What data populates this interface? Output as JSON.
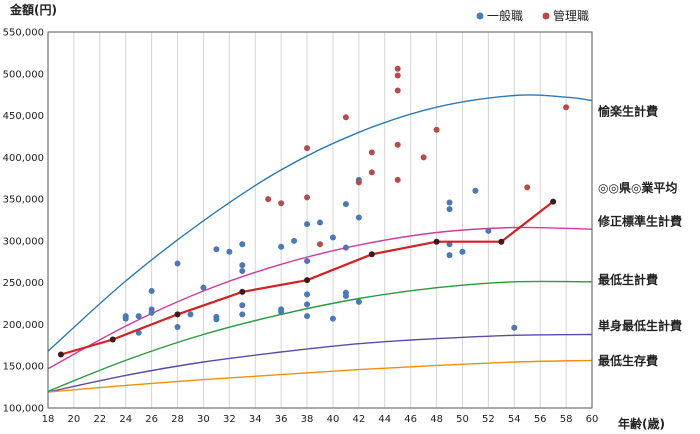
{
  "chart_data": {
    "type": "scatter",
    "ylabel": "金額(円)",
    "xlabel": "年齢(歳)",
    "xlim": [
      18,
      60
    ],
    "ylim": [
      100000,
      550000
    ],
    "x_ticks": [
      18,
      20,
      22,
      24,
      26,
      28,
      30,
      32,
      34,
      36,
      38,
      40,
      42,
      44,
      46,
      48,
      50,
      52,
      54,
      56,
      58,
      60
    ],
    "y_ticks": [
      100000,
      150000,
      200000,
      250000,
      300000,
      350000,
      400000,
      450000,
      500000,
      550000
    ],
    "y_tick_labels": [
      "100,000",
      "150,000",
      "200,000",
      "250,000",
      "300,000",
      "350,000",
      "400,000",
      "450,000",
      "500,000",
      "550,000"
    ],
    "grid": "vertical",
    "legend_position": "top-right",
    "legend": [
      {
        "name": "一般職",
        "color": "#4a78b8"
      },
      {
        "name": "管理職",
        "color": "#b84a4a"
      }
    ],
    "scatter_series": [
      {
        "name": "一般職",
        "color": "#4a78b8",
        "points": [
          [
            24,
            210000
          ],
          [
            24,
            207000
          ],
          [
            25,
            210000
          ],
          [
            25,
            190000
          ],
          [
            26,
            240000
          ],
          [
            26,
            218000
          ],
          [
            26,
            214000
          ],
          [
            28,
            273000
          ],
          [
            28,
            197000
          ],
          [
            29,
            212000
          ],
          [
            30,
            244000
          ],
          [
            31,
            290000
          ],
          [
            31,
            209000
          ],
          [
            31,
            206000
          ],
          [
            32,
            287000
          ],
          [
            33,
            296000
          ],
          [
            33,
            271000
          ],
          [
            33,
            264000
          ],
          [
            33,
            223000
          ],
          [
            33,
            212000
          ],
          [
            36,
            293000
          ],
          [
            36,
            218000
          ],
          [
            36,
            215000
          ],
          [
            37,
            300000
          ],
          [
            38,
            320000
          ],
          [
            38,
            276000
          ],
          [
            38,
            236000
          ],
          [
            38,
            224000
          ],
          [
            38,
            210000
          ],
          [
            39,
            322000
          ],
          [
            40,
            304000
          ],
          [
            40,
            207000
          ],
          [
            41,
            344000
          ],
          [
            41,
            292000
          ],
          [
            41,
            238000
          ],
          [
            41,
            234000
          ],
          [
            42,
            373000
          ],
          [
            42,
            328000
          ],
          [
            42,
            227000
          ],
          [
            49,
            346000
          ],
          [
            49,
            338000
          ],
          [
            49,
            296000
          ],
          [
            49,
            283000
          ],
          [
            50,
            287000
          ],
          [
            51,
            360000
          ],
          [
            52,
            312000
          ],
          [
            54,
            196000
          ]
        ]
      },
      {
        "name": "管理職",
        "color": "#b84a4a",
        "points": [
          [
            35,
            350000
          ],
          [
            36,
            345000
          ],
          [
            38,
            411000
          ],
          [
            38,
            352000
          ],
          [
            39,
            296000
          ],
          [
            41,
            448000
          ],
          [
            42,
            370000
          ],
          [
            43,
            406000
          ],
          [
            43,
            382000
          ],
          [
            45,
            506000
          ],
          [
            45,
            498000
          ],
          [
            45,
            480000
          ],
          [
            45,
            415000
          ],
          [
            45,
            373000
          ],
          [
            47,
            400000
          ],
          [
            48,
            433000
          ],
          [
            55,
            364000
          ],
          [
            58,
            460000
          ]
        ]
      }
    ],
    "average_line": {
      "name": "◎◎県◎業平均",
      "color": "#d42020",
      "points": [
        [
          19,
          164000
        ],
        [
          23,
          182000
        ],
        [
          28,
          212000
        ],
        [
          33,
          239000
        ],
        [
          38,
          253000
        ],
        [
          43,
          284000
        ],
        [
          48,
          299000
        ],
        [
          53,
          299000
        ],
        [
          57,
          347000
        ]
      ]
    },
    "curves": [
      {
        "name": "愉楽生計費",
        "color": "#2a7ab8",
        "points": [
          [
            18,
            168000
          ],
          [
            24,
            252000
          ],
          [
            30,
            324000
          ],
          [
            36,
            385000
          ],
          [
            42,
            430000
          ],
          [
            48,
            460000
          ],
          [
            54,
            474000
          ],
          [
            58,
            472000
          ],
          [
            60,
            468000
          ]
        ]
      },
      {
        "name": "修正標準生計費",
        "color": "#d43a9a",
        "points": [
          [
            18,
            147000
          ],
          [
            24,
            198000
          ],
          [
            30,
            240000
          ],
          [
            36,
            272000
          ],
          [
            42,
            295000
          ],
          [
            48,
            310000
          ],
          [
            54,
            316000
          ],
          [
            60,
            314000
          ]
        ]
      },
      {
        "name": "最低生計費",
        "color": "#2a9a40",
        "points": [
          [
            18,
            120000
          ],
          [
            24,
            157000
          ],
          [
            30,
            188000
          ],
          [
            36,
            212000
          ],
          [
            42,
            231000
          ],
          [
            48,
            244000
          ],
          [
            54,
            251000
          ],
          [
            60,
            251000
          ]
        ]
      },
      {
        "name": "単身最低生計費",
        "color": "#5a4aaa",
        "points": [
          [
            18,
            119000
          ],
          [
            24,
            139000
          ],
          [
            30,
            155000
          ],
          [
            36,
            167000
          ],
          [
            42,
            177000
          ],
          [
            48,
            183000
          ],
          [
            54,
            187000
          ],
          [
            60,
            188000
          ]
        ]
      },
      {
        "name": "最低生存費",
        "color": "#f0900a",
        "points": [
          [
            18,
            119000
          ],
          [
            24,
            127000
          ],
          [
            30,
            134000
          ],
          [
            36,
            140000
          ],
          [
            42,
            146000
          ],
          [
            48,
            151000
          ],
          [
            54,
            155000
          ],
          [
            60,
            157000
          ]
        ]
      }
    ],
    "labels_on_right": [
      {
        "text": "愉楽生計費",
        "value": 455000
      },
      {
        "text": "◎◎県◎業平均",
        "value": 363000
      },
      {
        "text": "修正標準生計費",
        "value": 323000
      },
      {
        "text": "最低生計費",
        "value": 253000
      },
      {
        "text": "単身最低生計費",
        "value": 198000
      },
      {
        "text": "最低生存費",
        "value": 156000
      }
    ]
  }
}
